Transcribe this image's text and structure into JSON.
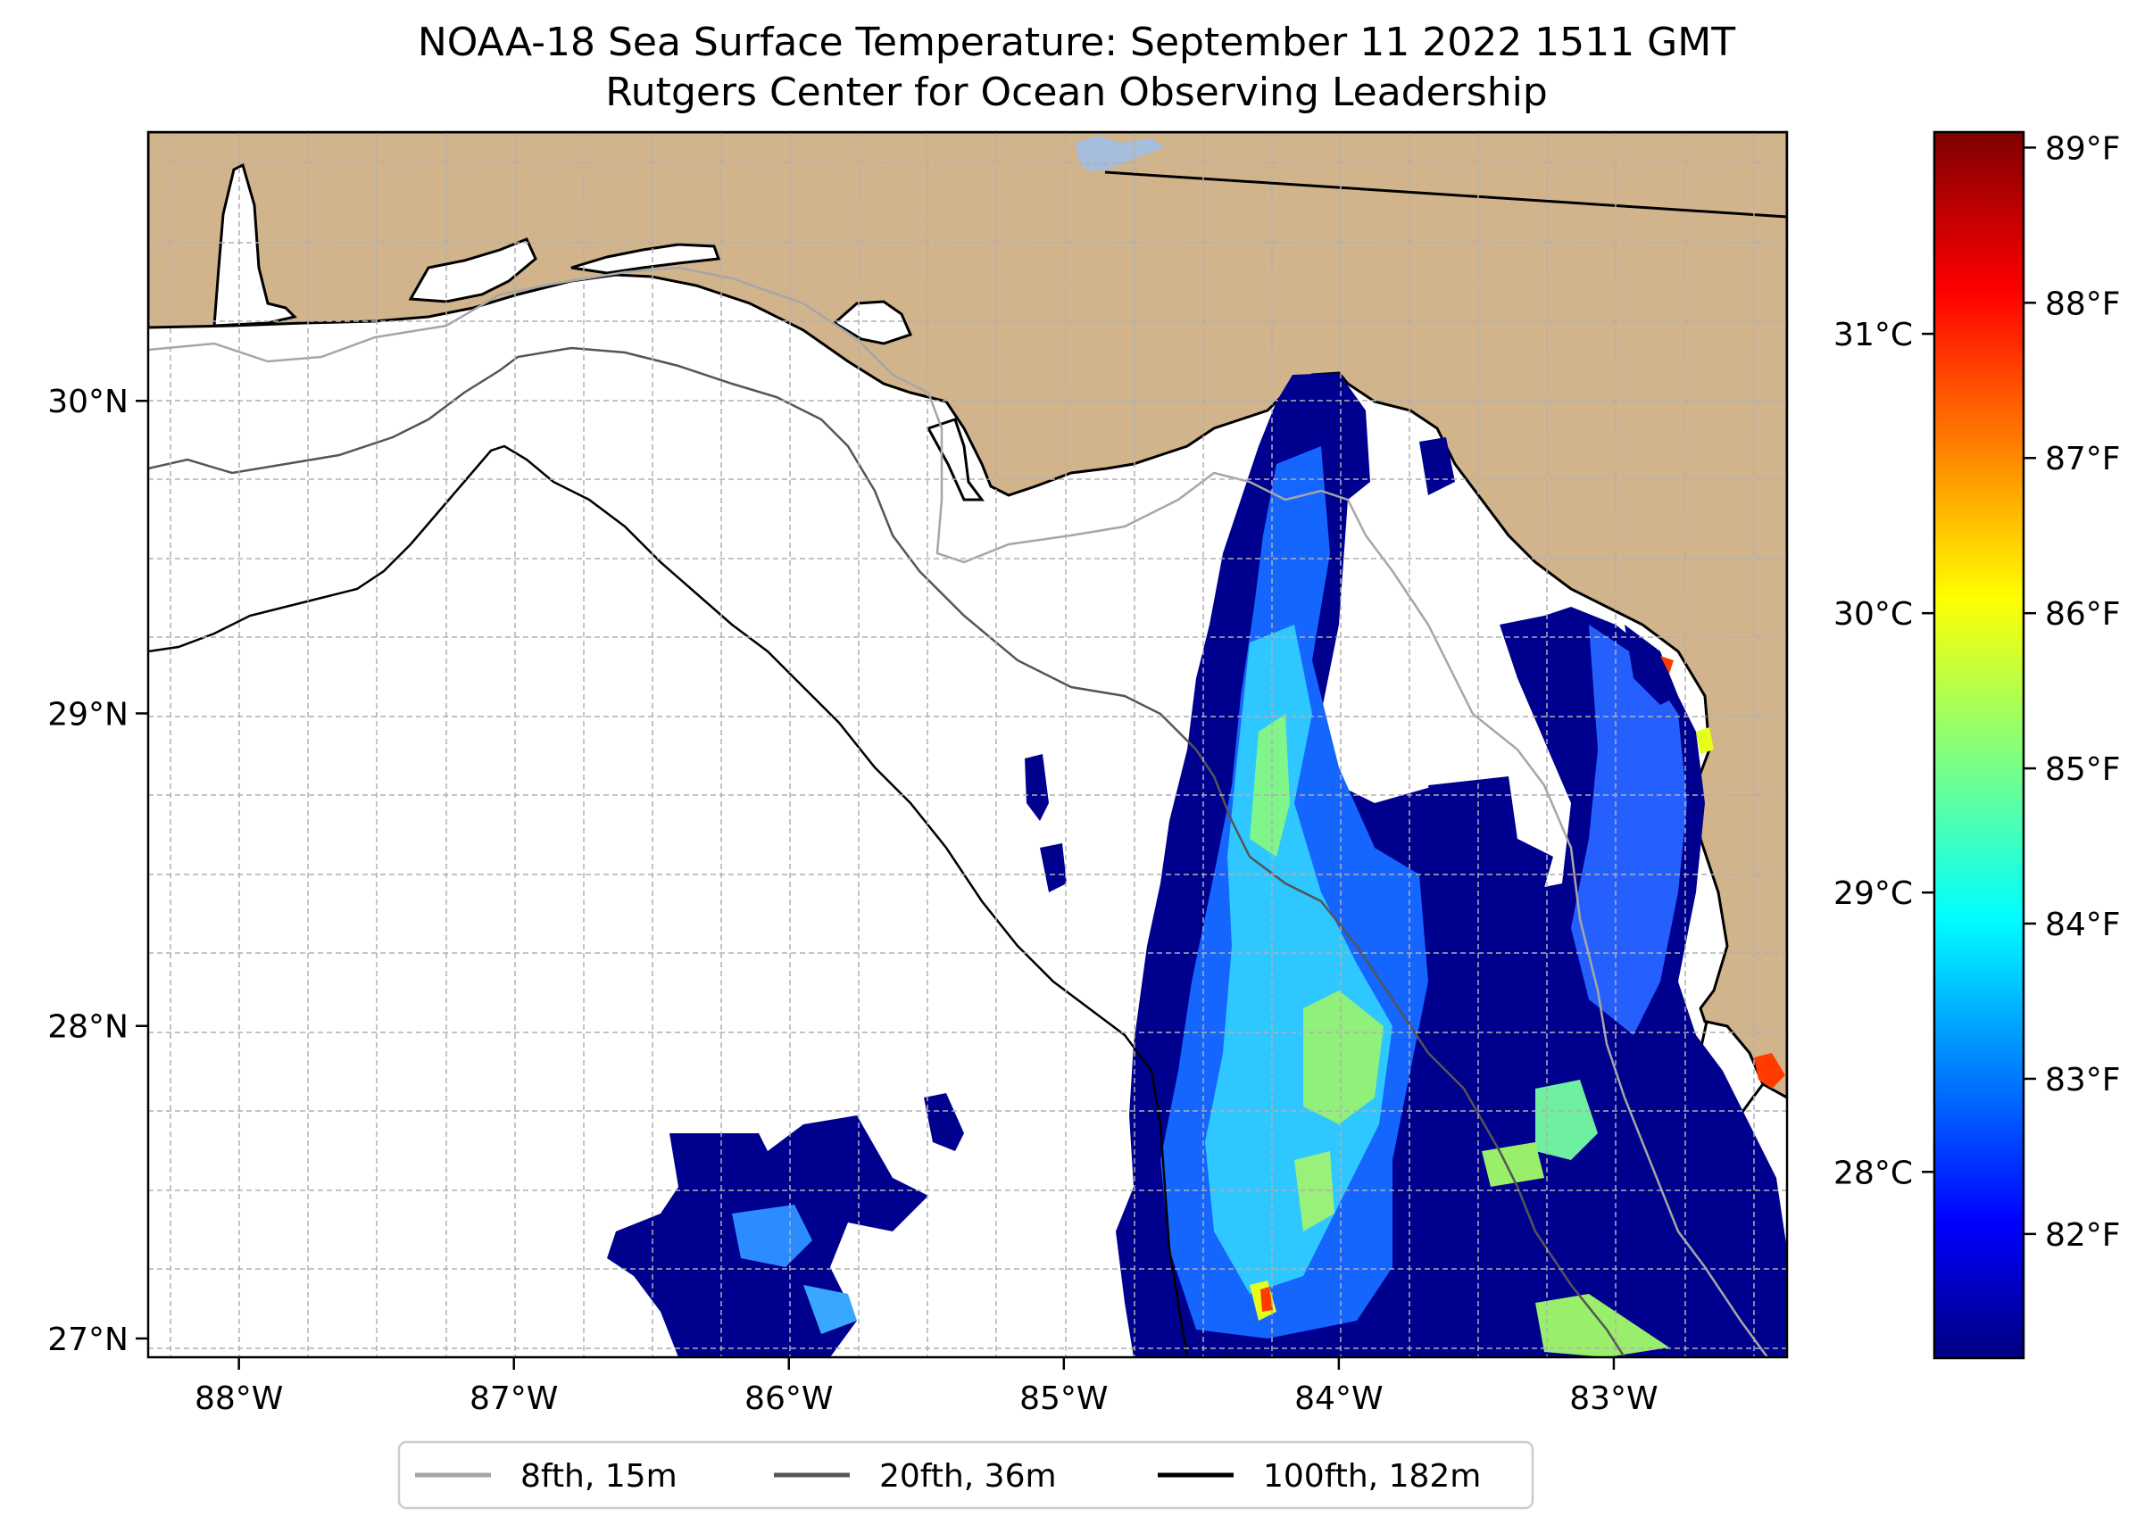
{
  "title": "NOAA-18 Sea Surface Temperature: September 11 2022 1511 GMT",
  "subtitle": "Rutgers Center for Ocean Observing Leadership",
  "map": {
    "lon_range": [
      -88.33,
      -82.37
    ],
    "lat_range": [
      26.94,
      30.86
    ],
    "lon_ticks": [
      {
        "value": -88,
        "label": "88°W"
      },
      {
        "value": -87,
        "label": "87°W"
      },
      {
        "value": -86,
        "label": "86°W"
      },
      {
        "value": -85,
        "label": "85°W"
      },
      {
        "value": -84,
        "label": "84°W"
      },
      {
        "value": -83,
        "label": "83°W"
      }
    ],
    "lat_ticks": [
      {
        "value": 27,
        "label": "27°N"
      },
      {
        "value": 28,
        "label": "28°N"
      },
      {
        "value": 29,
        "label": "29°N"
      },
      {
        "value": 30,
        "label": "30°N"
      }
    ],
    "colors": {
      "land": "#d2b48c",
      "ocean": "#ffffff",
      "lake": "#a6bddb",
      "grid": "#b0b0b0"
    }
  },
  "colorbar": {
    "colormap": "jet",
    "fahrenheit_ticks": [
      {
        "value": 82,
        "label": "82°F"
      },
      {
        "value": 83,
        "label": "83°F"
      },
      {
        "value": 84,
        "label": "84°F"
      },
      {
        "value": 85,
        "label": "85°F"
      },
      {
        "value": 86,
        "label": "86°F"
      },
      {
        "value": 87,
        "label": "87°F"
      },
      {
        "value": 88,
        "label": "88°F"
      },
      {
        "value": 89,
        "label": "89°F"
      }
    ],
    "celsius_ticks": [
      {
        "value": 28,
        "label": "28°C"
      },
      {
        "value": 29,
        "label": "29°C"
      },
      {
        "value": 30,
        "label": "30°C"
      },
      {
        "value": 31,
        "label": "31°C"
      }
    ],
    "range_f": [
      81.2,
      89.1
    ]
  },
  "legend": {
    "items": [
      {
        "label": "8fth, 15m",
        "color": "#a6a6a6"
      },
      {
        "label": "20fth, 36m",
        "color": "#555555"
      },
      {
        "label": "100fth, 182m",
        "color": "#000000"
      }
    ]
  }
}
